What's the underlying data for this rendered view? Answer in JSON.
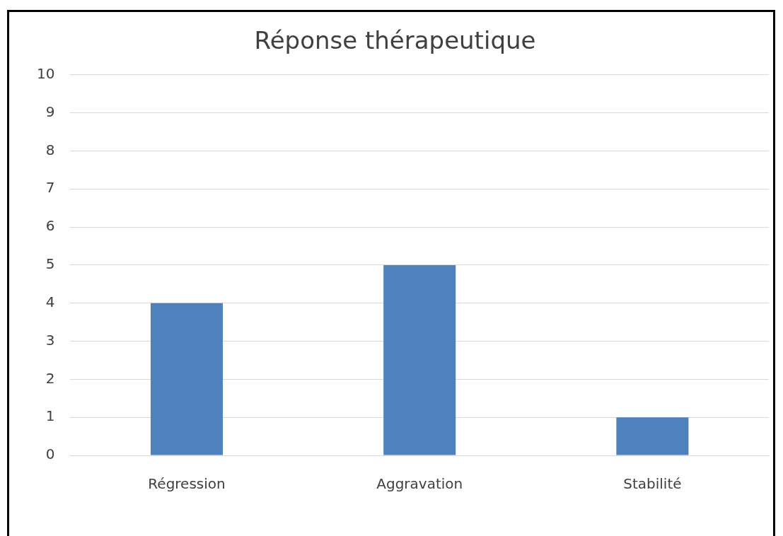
{
  "chart_data": {
    "type": "bar",
    "title": "Réponse thérapeutique",
    "categories": [
      "Régression",
      "Aggravation",
      "Stabilité"
    ],
    "values": [
      4,
      5,
      1
    ],
    "color": "#4f81bd",
    "ylim": [
      0,
      10
    ],
    "yticks": [
      0,
      1,
      2,
      3,
      4,
      5,
      6,
      7,
      8,
      9,
      10
    ],
    "grid": "y",
    "legend": false
  }
}
